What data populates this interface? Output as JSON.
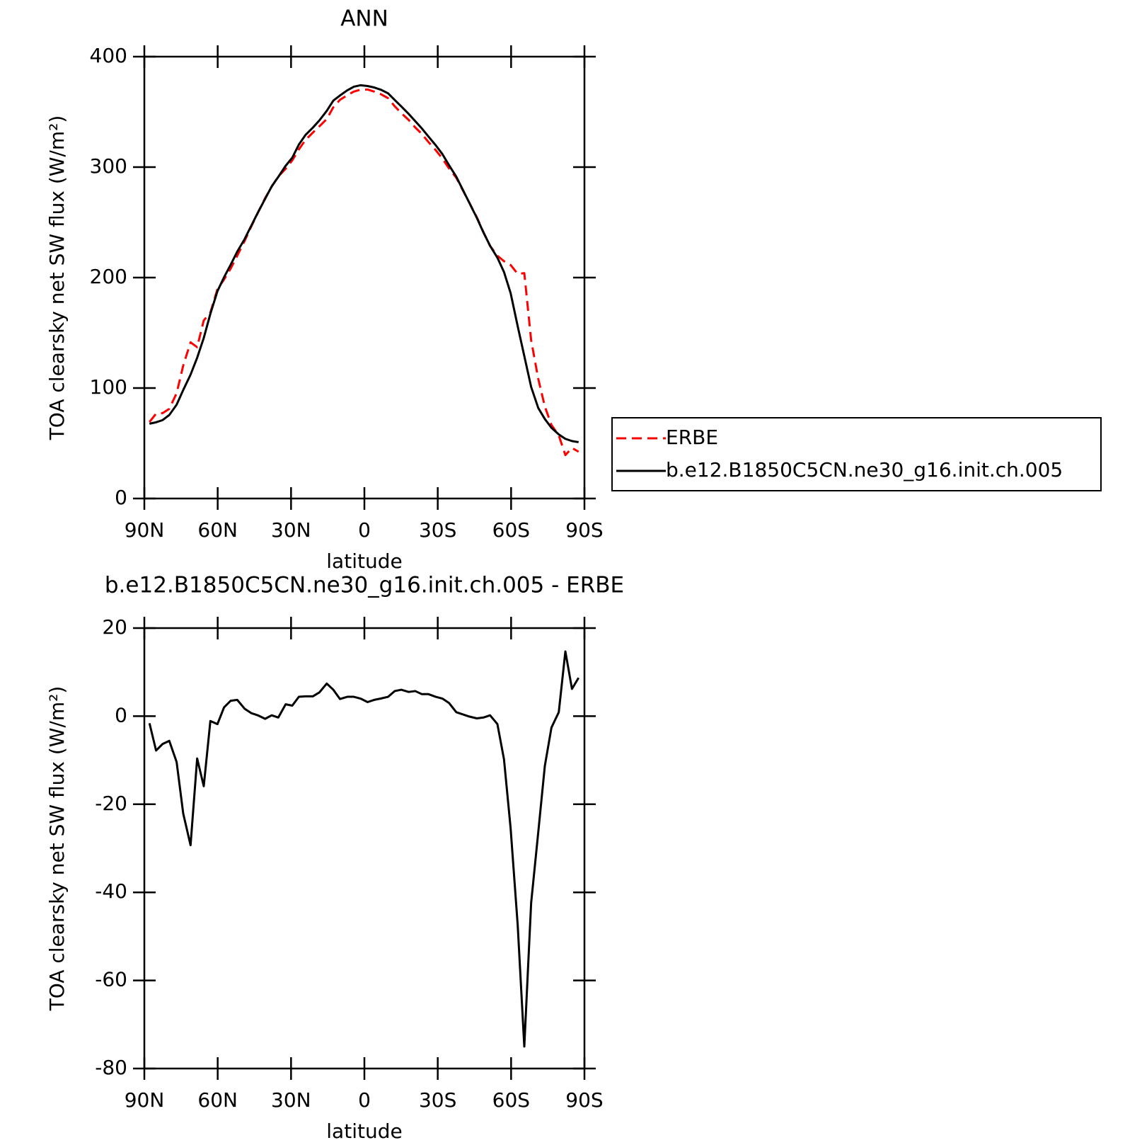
{
  "chart_data": [
    {
      "type": "line",
      "title": "ANN",
      "xlabel": "latitude",
      "ylabel": "TOA clearsky net SW flux (W/m²)",
      "x": [
        87.9,
        85.2,
        82.5,
        79.8,
        76.8,
        74.1,
        71.1,
        68.4,
        65.7,
        63.0,
        60.1,
        57.4,
        54.7,
        52.0,
        49.0,
        46.3,
        43.6,
        40.6,
        37.9,
        35.2,
        32.2,
        29.5,
        26.8,
        24.1,
        21.1,
        18.4,
        15.4,
        12.7,
        10.0,
        7.0,
        4.3,
        1.6,
        -1.3,
        -4.0,
        -6.7,
        -9.7,
        -12.4,
        -15.1,
        -18.1,
        -20.8,
        -23.5,
        -26.2,
        -29.2,
        -31.9,
        -34.6,
        -37.6,
        -40.3,
        -43.0,
        -46.0,
        -48.7,
        -51.4,
        -54.4,
        -57.1,
        -59.8,
        -62.7,
        -65.4,
        -68.2,
        -71.1,
        -73.8,
        -76.5,
        -79.5,
        -82.2,
        -84.9,
        -87.6
      ],
      "series": [
        {
          "name": "ERBE",
          "color": "#ff0000",
          "dashed": true,
          "values": [
            69.3,
            76.8,
            77.3,
            81.2,
            95.3,
            120.3,
            141.4,
            137.0,
            161.2,
            168.3,
            189.5,
            198.3,
            208.1,
            219.8,
            233.1,
            246.1,
            258.5,
            271.9,
            282.4,
            291.5,
            298.5,
            306.1,
            316.0,
            324.6,
            331.2,
            336.9,
            343.5,
            354.2,
            360.9,
            365.1,
            368.4,
            370.1,
            370.2,
            368.4,
            366.1,
            362.4,
            355.1,
            348.9,
            342.7,
            335.9,
            330.0,
            322.7,
            315.3,
            307.8,
            298.8,
            290.3,
            278.9,
            267.4,
            254.5,
            241.1,
            228.6,
            219.8,
            214.8,
            211.4,
            203.4,
            204.0,
            143.4,
            108.4,
            83.3,
            66.6,
            57.1,
            39.3,
            45.8,
            42.3
          ]
        },
        {
          "name": "b.e12.B1850C5CN.ne30_g16.init.ch.005",
          "color": "#000000",
          "dashed": false,
          "values": [
            67.7,
            69.0,
            71.0,
            75.6,
            84.9,
            98.2,
            112.1,
            127.4,
            145.3,
            167.2,
            187.7,
            200.3,
            211.6,
            223.5,
            234.8,
            246.8,
            258.7,
            271.3,
            282.6,
            291.2,
            301.2,
            308.5,
            320.4,
            329.1,
            335.7,
            342.3,
            350.9,
            360.2,
            364.8,
            369.5,
            372.8,
            374.1,
            373.4,
            372.1,
            370.1,
            366.8,
            360.8,
            354.9,
            348.2,
            341.6,
            335.0,
            327.7,
            319.7,
            311.8,
            301.8,
            291.2,
            279.3,
            267.3,
            254.0,
            240.8,
            228.8,
            218,
            205,
            186,
            156,
            129,
            101,
            82,
            72,
            64,
            58,
            54,
            52,
            51
          ]
        }
      ],
      "xlim": [
        90,
        -90
      ],
      "xticks": [
        {
          "value": 90,
          "label": "90N"
        },
        {
          "value": 60,
          "label": "60N"
        },
        {
          "value": 30,
          "label": "30N"
        },
        0,
        {
          "value": -30,
          "label": "30S"
        },
        {
          "value": -60,
          "label": "60S"
        },
        {
          "value": -90,
          "label": "90S"
        }
      ],
      "ylim": [
        0,
        400
      ],
      "yticks": [
        0,
        100,
        200,
        300,
        400
      ],
      "legend": "right"
    },
    {
      "type": "line",
      "title": "b.e12.B1850C5CN.ne30_g16.init.ch.005 - ERBE",
      "xlabel": "latitude",
      "ylabel": "TOA clearsky net SW flux (W/m²)",
      "x": [
        87.9,
        85.2,
        82.5,
        79.8,
        76.8,
        74.1,
        71.1,
        68.4,
        65.7,
        63.0,
        60.1,
        57.4,
        54.7,
        52.0,
        49.0,
        46.3,
        43.6,
        40.6,
        37.9,
        35.2,
        32.2,
        29.5,
        26.8,
        24.1,
        21.1,
        18.4,
        15.4,
        12.7,
        10.0,
        7.0,
        4.3,
        1.6,
        -1.3,
        -4.0,
        -6.7,
        -9.7,
        -12.4,
        -15.1,
        -18.1,
        -20.8,
        -23.5,
        -26.2,
        -29.2,
        -31.9,
        -34.6,
        -37.6,
        -40.3,
        -43.0,
        -46.0,
        -48.7,
        -51.4,
        -54.4,
        -57.1,
        -59.8,
        -62.7,
        -65.4,
        -68.2,
        -71.1,
        -73.8,
        -76.5,
        -79.5,
        -82.2,
        -84.9,
        -87.6
      ],
      "series": [
        {
          "color": "#000000",
          "dashed": false,
          "values": [
            -1.6,
            -7.8,
            -6.3,
            -5.6,
            -10.4,
            -22.1,
            -29.3,
            -9.6,
            -15.9,
            -1.1,
            -1.8,
            2.0,
            3.5,
            3.7,
            1.7,
            0.7,
            0.2,
            -0.6,
            0.2,
            -0.3,
            2.7,
            2.4,
            4.4,
            4.5,
            4.5,
            5.4,
            7.4,
            6.0,
            3.9,
            4.4,
            4.4,
            4.0,
            3.2,
            3.7,
            4.0,
            4.4,
            5.7,
            6.0,
            5.5,
            5.7,
            5.0,
            5.0,
            4.4,
            4.0,
            3.0,
            0.9,
            0.4,
            -0.1,
            -0.5,
            -0.3,
            0.2,
            -1.8,
            -9.8,
            -25.4,
            -47.4,
            -75.0,
            -42.4,
            -26.4,
            -11.3,
            -2.6,
            0.9,
            14.7,
            6.2,
            8.7
          ]
        }
      ],
      "xlim": [
        90,
        -90
      ],
      "xticks": [
        {
          "value": 90,
          "label": "90N"
        },
        {
          "value": 60,
          "label": "60N"
        },
        {
          "value": 30,
          "label": "30N"
        },
        0,
        {
          "value": -30,
          "label": "30S"
        },
        {
          "value": -60,
          "label": "60S"
        },
        {
          "value": -90,
          "label": "90S"
        }
      ],
      "ylim": [
        -80,
        20
      ],
      "yticks": [
        -80,
        -60,
        -40,
        -20,
        0,
        20
      ]
    }
  ]
}
